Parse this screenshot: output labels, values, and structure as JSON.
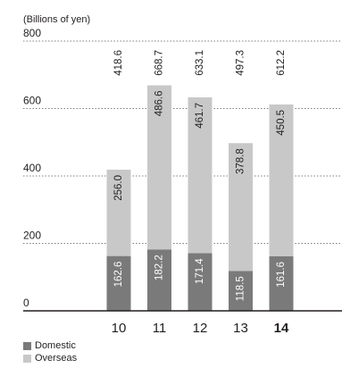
{
  "chart_data": {
    "type": "bar",
    "stacked": true,
    "unit_label": "(Billions of yen)",
    "categories": [
      "10",
      "11",
      "12",
      "13",
      "14"
    ],
    "highlight_category": "14",
    "series": [
      {
        "name": "Domestic",
        "color": "#7a7a7a",
        "values": [
          162.6,
          182.2,
          171.4,
          118.5,
          161.6
        ]
      },
      {
        "name": "Overseas",
        "color": "#c8c8c8",
        "values": [
          256.0,
          486.6,
          461.7,
          378.8,
          450.5
        ]
      }
    ],
    "totals": [
      418.6,
      668.7,
      633.1,
      497.3,
      612.2
    ],
    "ylim": [
      0,
      800
    ],
    "yticks": [
      0,
      200,
      400,
      600,
      800
    ],
    "grid": true,
    "legend_position": "bottom-left"
  }
}
